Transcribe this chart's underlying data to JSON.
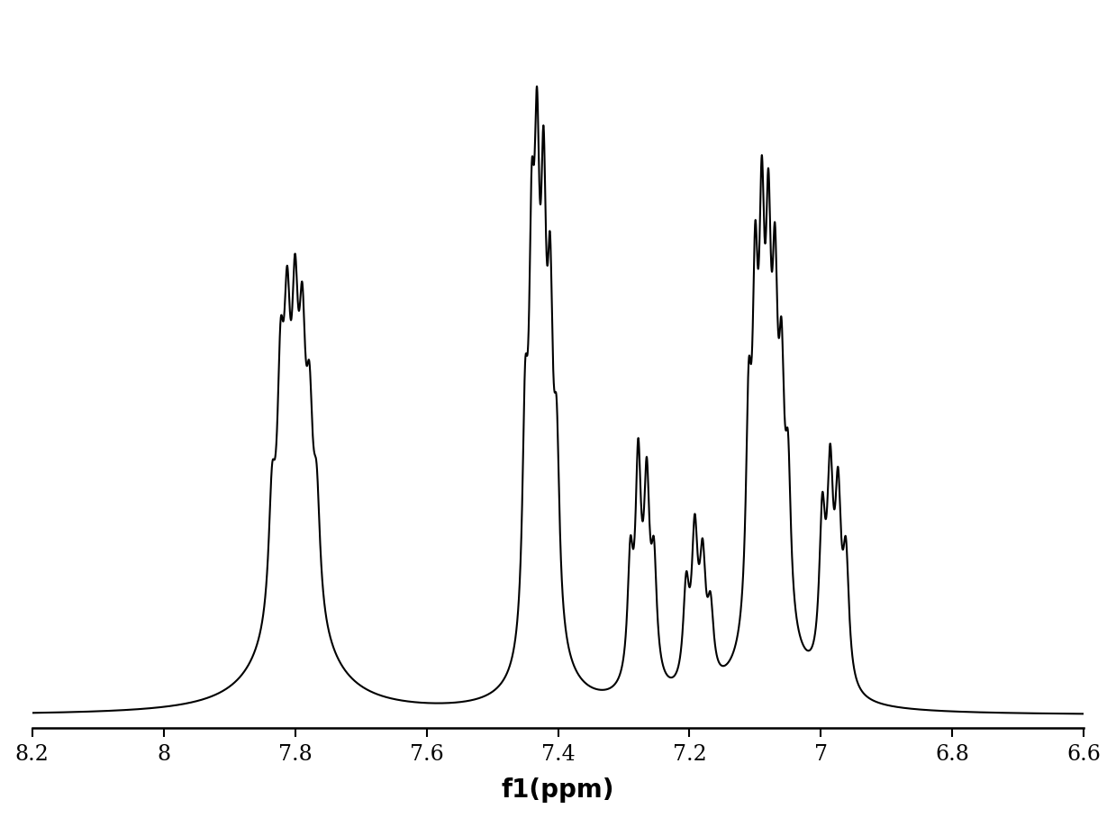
{
  "xlim": [
    8.2,
    6.6
  ],
  "ylim": [
    -0.02,
    1.08
  ],
  "xlabel": "f1(ppm)",
  "xlabel_fontsize": 20,
  "xlabel_fontweight": "bold",
  "xticks": [
    8.2,
    8.0,
    7.8,
    7.6,
    7.4,
    7.2,
    7.0,
    6.8,
    6.6
  ],
  "line_color": "#000000",
  "line_width": 1.5,
  "background_color": "#ffffff",
  "figsize": [
    12.39,
    9.08
  ],
  "dpi": 100
}
